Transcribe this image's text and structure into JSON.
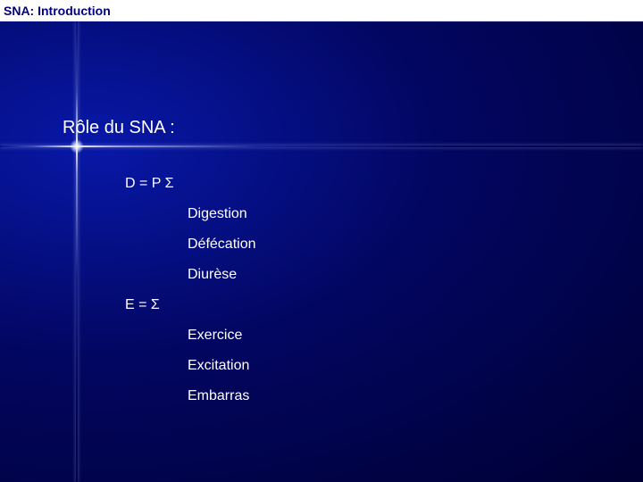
{
  "header": {
    "title": "SNA: Introduction"
  },
  "section": {
    "title": "Rôle du SNA :"
  },
  "groups": {
    "d": {
      "label": "D = P Σ",
      "items": [
        "Digestion",
        "Défécation",
        "Diurèse"
      ]
    },
    "e": {
      "label": "E = Σ",
      "items": [
        "Exercice",
        "Excitation",
        "Embarras"
      ]
    }
  },
  "colors": {
    "background_center": "#0818a8",
    "background_edge": "#000033",
    "header_bg": "#ffffff",
    "header_text": "#000080",
    "body_text": "#ffffff"
  },
  "typography": {
    "header_fontsize": 14,
    "section_fontsize": 20,
    "body_fontsize": 16
  }
}
